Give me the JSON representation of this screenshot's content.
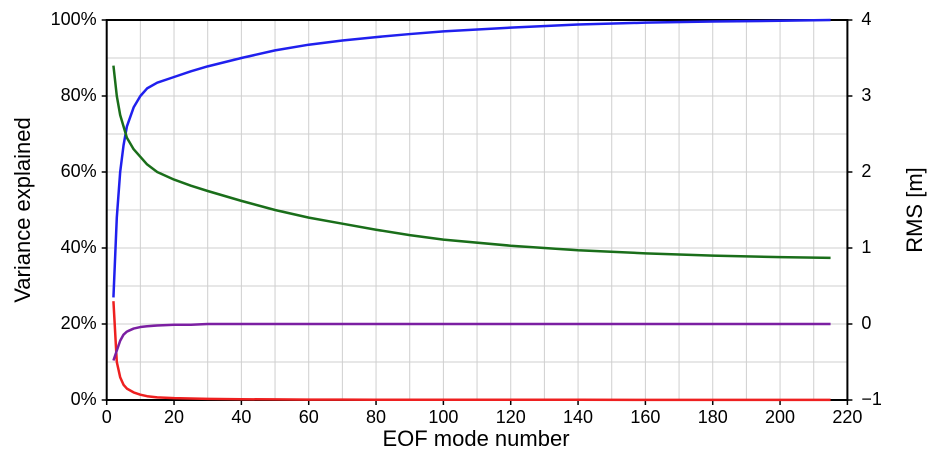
{
  "chart_data": {
    "type": "line",
    "xlabel": "EOF mode number",
    "ylabel": "Variance explained",
    "y2label": "RMS [m]",
    "x": [
      2,
      3,
      4,
      5,
      6,
      8,
      10,
      12,
      15,
      20,
      25,
      30,
      40,
      50,
      60,
      70,
      80,
      90,
      100,
      120,
      140,
      160,
      180,
      200,
      215
    ],
    "series": [
      {
        "color": "#2020ee",
        "values": [
          27,
          48,
          60,
          67,
          72,
          77,
          80,
          82,
          83.5,
          85,
          86.5,
          87.8,
          90,
          92,
          93.5,
          94.6,
          95.5,
          96.3,
          97,
          98,
          98.8,
          99.3,
          99.6,
          99.8,
          100
        ]
      },
      {
        "color": "#ee2020",
        "values": [
          26,
          10,
          6,
          4,
          3,
          2,
          1.4,
          1,
          0.7,
          0.5,
          0.4,
          0.3,
          0.2,
          0.15,
          0.1,
          0.1,
          0.08,
          0.07,
          0.06,
          0.05,
          0.05,
          0.04,
          0.04,
          0.03,
          0.03
        ]
      },
      {
        "color": "#1a6e1a",
        "axis": "y2",
        "values": [
          3.4,
          3.0,
          2.75,
          2.6,
          2.45,
          2.3,
          2.2,
          2.1,
          2.0,
          1.9,
          1.82,
          1.75,
          1.62,
          1.5,
          1.4,
          1.32,
          1.24,
          1.17,
          1.11,
          1.03,
          0.97,
          0.93,
          0.9,
          0.88,
          0.87
        ]
      },
      {
        "color": "#7b1fa2",
        "axis": "y2",
        "values": [
          -0.48,
          -0.35,
          -0.22,
          -0.14,
          -0.1,
          -0.06,
          -0.04,
          -0.03,
          -0.02,
          -0.01,
          -0.01,
          0,
          0,
          0,
          0,
          0,
          0,
          0,
          0,
          0,
          0,
          0,
          0,
          0,
          0
        ]
      }
    ],
    "xlim": [
      0,
      220
    ],
    "xticks": [
      0,
      20,
      40,
      60,
      80,
      100,
      120,
      140,
      160,
      180,
      200,
      220
    ],
    "ylim": [
      0,
      100
    ],
    "yticks": [
      {
        "value": 0,
        "label": "0%"
      },
      {
        "value": 20,
        "label": "20%"
      },
      {
        "value": 40,
        "label": "40%"
      },
      {
        "value": 60,
        "label": "60%"
      },
      {
        "value": 80,
        "label": "80%"
      },
      {
        "value": 100,
        "label": "100%"
      }
    ],
    "y2lim": [
      -1,
      4
    ],
    "y2ticks": [
      {
        "value": -1,
        "label": "−1"
      },
      0,
      1,
      2,
      3,
      4
    ],
    "grid": true
  }
}
